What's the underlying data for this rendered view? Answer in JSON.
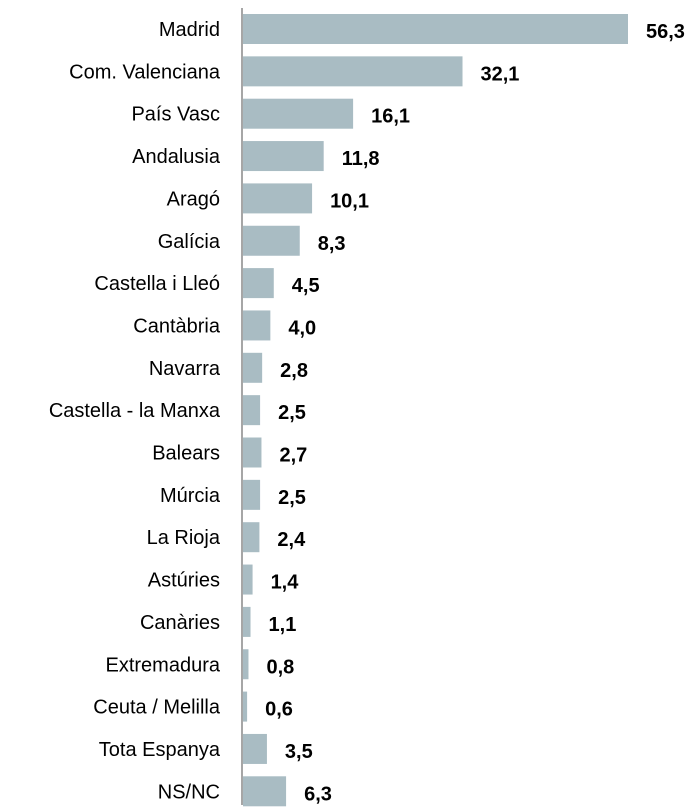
{
  "chart_data": {
    "type": "bar",
    "orientation": "horizontal",
    "categories": [
      "Madrid",
      "Com. Valenciana",
      "País Vasc",
      "Andalusia",
      "Aragó",
      "Galícia",
      "Castella i Lleó",
      "Cantàbria",
      "Navarra",
      "Castella - la Manxa",
      "Balears",
      "Múrcia",
      "La Rioja",
      "Astúries",
      "Canàries",
      "Extremadura",
      "Ceuta / Melilla",
      "Tota Espanya",
      "NS/NC"
    ],
    "values": [
      56.3,
      32.1,
      16.1,
      11.8,
      10.1,
      8.3,
      4.5,
      4.0,
      2.8,
      2.5,
      2.7,
      2.5,
      2.4,
      1.4,
      1.1,
      0.8,
      0.6,
      3.5,
      6.3
    ],
    "value_labels": [
      "56,3",
      "32,1",
      "16,1",
      "11,8",
      "10,1",
      "8,3",
      "4,5",
      "4,0",
      "2,8",
      "2,5",
      "2,7",
      "2,5",
      "2,4",
      "1,4",
      "1,1",
      "0,8",
      "0,6",
      "3,5",
      "6,3"
    ],
    "xlim": [
      0,
      56.3
    ],
    "grid": false,
    "legend": "none",
    "colors": {
      "bar": "#a9bcc3",
      "axis": "#888888",
      "text": "#000000"
    }
  }
}
